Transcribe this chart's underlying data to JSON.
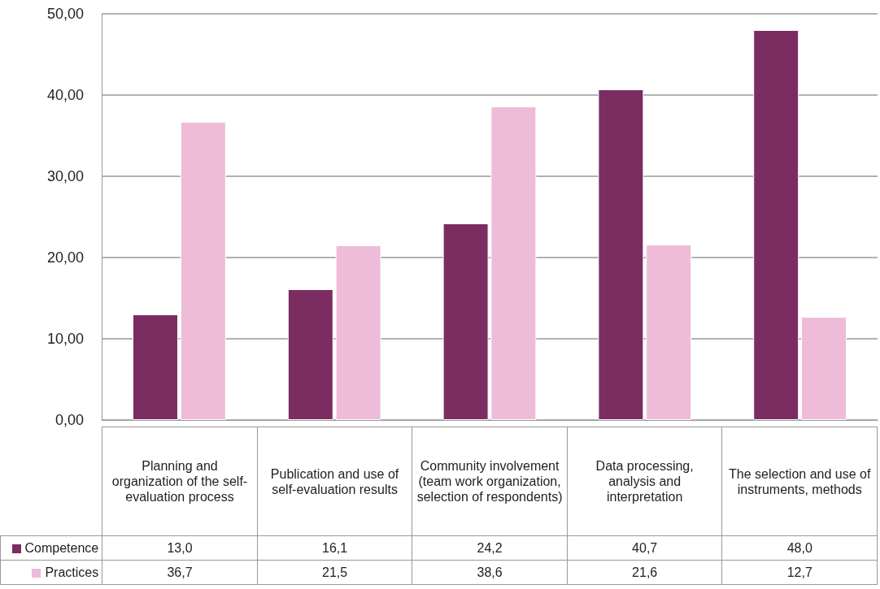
{
  "chart_data": {
    "type": "bar",
    "categories": [
      "Planning and organization of the self-evaluation process",
      "Publication and use of self-evaluation results",
      "Community involvement (team work organization, selection of respondents)",
      "Data processing, analysis and interpretation",
      "The selection and use of instruments, methods"
    ],
    "series": [
      {
        "name": "Competence",
        "color": "#7b2d62",
        "values": [
          13.0,
          16.1,
          24.2,
          40.7,
          48.0
        ],
        "value_labels": [
          "13,0",
          "16,1",
          "24,2",
          "40,7",
          "48,0"
        ]
      },
      {
        "name": "Practices",
        "color": "#eebcd8",
        "values": [
          36.7,
          21.5,
          38.6,
          21.6,
          12.7
        ],
        "value_labels": [
          "36,7",
          "21,5",
          "38,6",
          "21,6",
          "12,7"
        ]
      }
    ],
    "ylim": [
      0,
      50
    ],
    "yticks": [
      {
        "value": 0,
        "label": "0,00"
      },
      {
        "value": 10,
        "label": "10,00"
      },
      {
        "value": 20,
        "label": "20,00"
      },
      {
        "value": 30,
        "label": "30,00"
      },
      {
        "value": 40,
        "label": "40,00"
      },
      {
        "value": 50,
        "label": "50,00"
      }
    ],
    "grid": "y",
    "legend": "bottom"
  }
}
